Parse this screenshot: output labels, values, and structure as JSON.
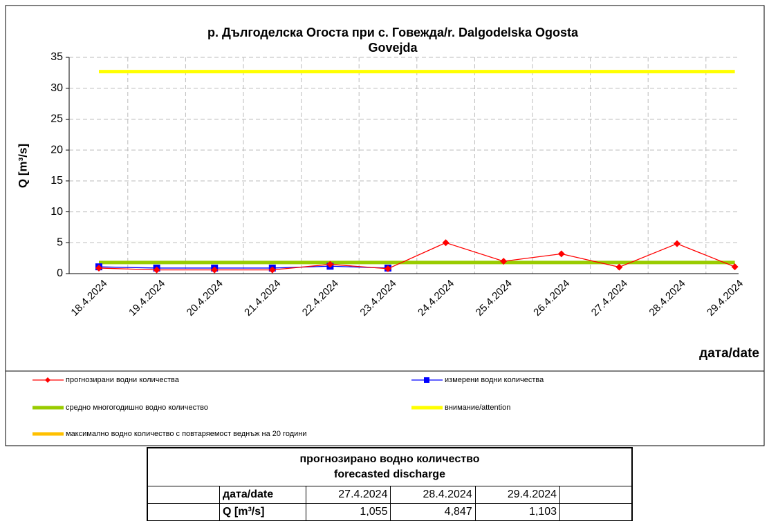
{
  "chart_data": {
    "type": "line",
    "title": [
      "р. Дългоделска Огоста при с. Говежда/r. Dalgodelska Ogosta",
      "Govejda"
    ],
    "xlabel": "дата/date",
    "ylabel": "Q [m³/s]",
    "categories": [
      "18.4.2024",
      "19.4.2024",
      "20.4.2024",
      "21.4.2024",
      "22.4.2024",
      "23.4.2024",
      "24.4.2024",
      "25.4.2024",
      "26.4.2024",
      "27.4.2024",
      "28.4.2024",
      "29.4.2024"
    ],
    "series": [
      {
        "name": "прогнозирани водни количества",
        "color": "#ff0000",
        "marker": "diamond",
        "values": [
          0.9,
          0.6,
          0.6,
          0.6,
          1.5,
          0.8,
          5.0,
          2.0,
          3.2,
          1.055,
          4.847,
          1.103
        ]
      },
      {
        "name": "измерени водни количества",
        "color": "#0000ff",
        "marker": "square",
        "values": [
          1.1,
          0.9,
          0.9,
          0.9,
          1.2,
          0.9,
          null,
          null,
          null,
          null,
          null,
          null
        ]
      },
      {
        "name": "средно многогодишно водно количество",
        "color": "#99cc00",
        "values": [
          1.8,
          1.8,
          1.8,
          1.8,
          1.8,
          1.8,
          1.8,
          1.8,
          1.8,
          1.8,
          1.8,
          1.8
        ]
      },
      {
        "name": "внимание/attention",
        "color": "#ffff00",
        "values": [
          32.7,
          32.7,
          32.7,
          32.7,
          32.7,
          32.7,
          32.7,
          32.7,
          32.7,
          32.7,
          32.7,
          32.7
        ]
      },
      {
        "name": "максимално водно количество с повтаряемост веднъж на 20 години",
        "color": "#ffc000",
        "values": [
          null,
          null,
          null,
          null,
          null,
          null,
          null,
          null,
          null,
          null,
          null,
          null
        ]
      }
    ],
    "ylim": [
      0,
      35
    ],
    "yticks": [
      0,
      5,
      10,
      15,
      20,
      25,
      30,
      35
    ],
    "grid": true
  },
  "table": {
    "title": [
      "прогнозирано водно количество",
      "forecasted discharge"
    ],
    "rows": [
      [
        "дата/date",
        "27.4.2024",
        "28.4.2024",
        "29.4.2024"
      ],
      [
        "Q [m³/s]",
        "1,055",
        "4,847",
        "1,103"
      ]
    ]
  }
}
